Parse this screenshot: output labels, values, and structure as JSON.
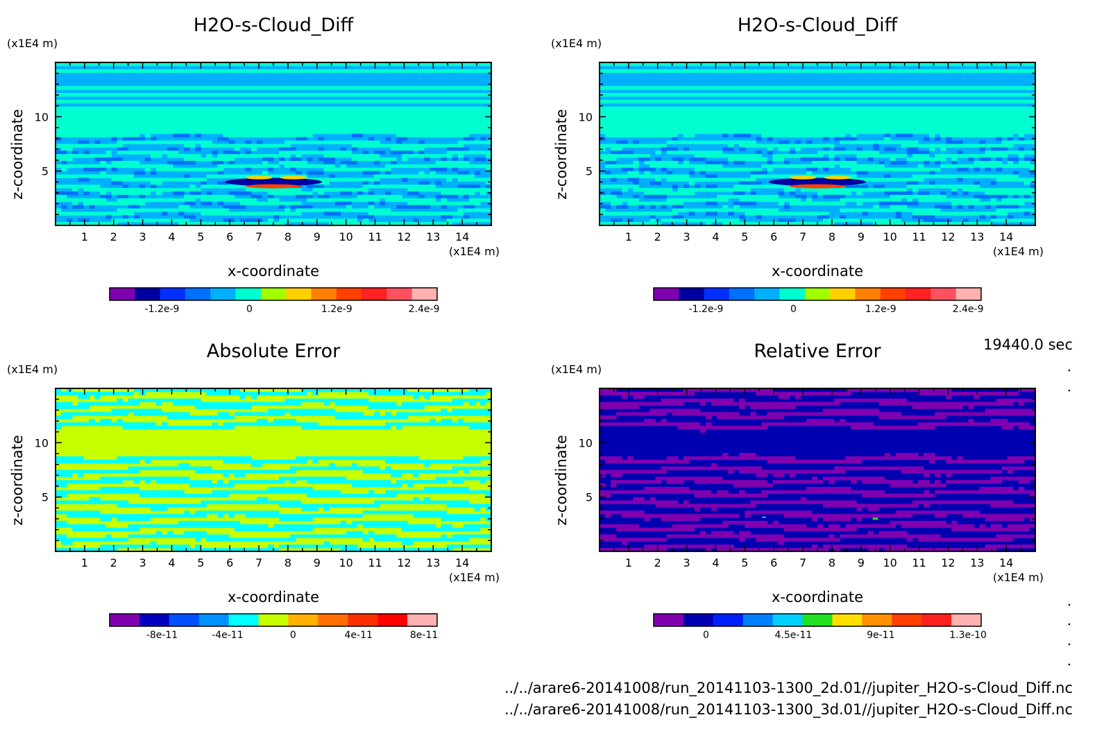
{
  "time_label": "19440.0 sec",
  "file_lines": [
    "../../arare6-20141008/run_20141103-1300_2d.01//jupiter_H2O-s-Cloud_Diff.nc",
    "../../arare6-20141008/run_20141103-1300_3d.01//jupiter_H2O-s-Cloud_Diff.nc"
  ],
  "chart_data": [
    {
      "type": "heatmap",
      "title": "H2O-s-Cloud_Diff",
      "xlabel": "x-coordinate",
      "ylabel": "z-coordinate",
      "x_unit": "(x1E4 m)",
      "y_unit": "(x1E4 m)",
      "xlim": [
        0,
        15
      ],
      "ylim": [
        0,
        15
      ],
      "x_ticks": [
        "1",
        "2",
        "3",
        "4",
        "5",
        "6",
        "7",
        "8",
        "9",
        "10",
        "11",
        "12",
        "13",
        "14"
      ],
      "y_ticks": [
        "5",
        "10"
      ],
      "pattern": "diff",
      "colorbar": {
        "colors": [
          "#8000b0",
          "#0000a0",
          "#0030ff",
          "#0070ff",
          "#00b0ff",
          "#00ffd0",
          "#a0ff00",
          "#ffd000",
          "#ff8000",
          "#ff4000",
          "#ff2020",
          "#ff5060",
          "#ffb0b0"
        ],
        "tick_labels": [
          "-1.2e-9",
          "0",
          "1.2e-9",
          "2.4e-9"
        ]
      }
    },
    {
      "type": "heatmap",
      "title": "H2O-s-Cloud_Diff",
      "xlabel": "x-coordinate",
      "ylabel": "z-coordinate",
      "x_unit": "(x1E4 m)",
      "y_unit": "(x1E4 m)",
      "xlim": [
        0,
        15
      ],
      "ylim": [
        0,
        15
      ],
      "x_ticks": [
        "1",
        "2",
        "3",
        "4",
        "5",
        "6",
        "7",
        "8",
        "9",
        "10",
        "11",
        "12",
        "13",
        "14"
      ],
      "y_ticks": [
        "5",
        "10"
      ],
      "pattern": "diff",
      "colorbar": {
        "colors": [
          "#8000b0",
          "#0000a0",
          "#0030ff",
          "#0070ff",
          "#00b0ff",
          "#00ffd0",
          "#a0ff00",
          "#ffd000",
          "#ff8000",
          "#ff4000",
          "#ff2020",
          "#ff5060",
          "#ffb0b0"
        ],
        "tick_labels": [
          "-1.2e-9",
          "0",
          "1.2e-9",
          "2.4e-9"
        ]
      }
    },
    {
      "type": "heatmap",
      "title": "Absolute Error",
      "xlabel": "x-coordinate",
      "ylabel": "z-coordinate",
      "x_unit": "(x1E4 m)",
      "y_unit": "(x1E4 m)",
      "xlim": [
        0,
        15
      ],
      "ylim": [
        0,
        15
      ],
      "x_ticks": [
        "1",
        "2",
        "3",
        "4",
        "5",
        "6",
        "7",
        "8",
        "9",
        "10",
        "11",
        "12",
        "13",
        "14"
      ],
      "y_ticks": [
        "5",
        "10"
      ],
      "pattern": "abs",
      "colorbar": {
        "colors": [
          "#8000b0",
          "#0000c0",
          "#0050ff",
          "#0090ff",
          "#00ffff",
          "#c8ff00",
          "#ffb000",
          "#ff7000",
          "#ff3000",
          "#ff0000",
          "#ffb0b0"
        ],
        "tick_labels": [
          "-8e-11",
          "-4e-11",
          "0",
          "4e-11",
          "8e-11"
        ]
      }
    },
    {
      "type": "heatmap",
      "title": "Relative Error",
      "xlabel": "x-coordinate",
      "ylabel": "z-coordinate",
      "x_unit": "(x1E4 m)",
      "y_unit": "(x1E4 m)",
      "xlim": [
        0,
        15
      ],
      "ylim": [
        0,
        15
      ],
      "x_ticks": [
        "1",
        "2",
        "3",
        "4",
        "5",
        "6",
        "7",
        "8",
        "9",
        "10",
        "11",
        "12",
        "13",
        "14"
      ],
      "y_ticks": [
        "5",
        "10"
      ],
      "pattern": "rel",
      "colorbar": {
        "colors": [
          "#8000b0",
          "#0000b0",
          "#0020ff",
          "#0080ff",
          "#00d0ff",
          "#20e020",
          "#ffe000",
          "#ff9000",
          "#ff4000",
          "#ff2020",
          "#ffb0b0"
        ],
        "tick_labels": [
          "0",
          "4.5e-11",
          "9e-11",
          "1.3e-10"
        ]
      }
    }
  ]
}
